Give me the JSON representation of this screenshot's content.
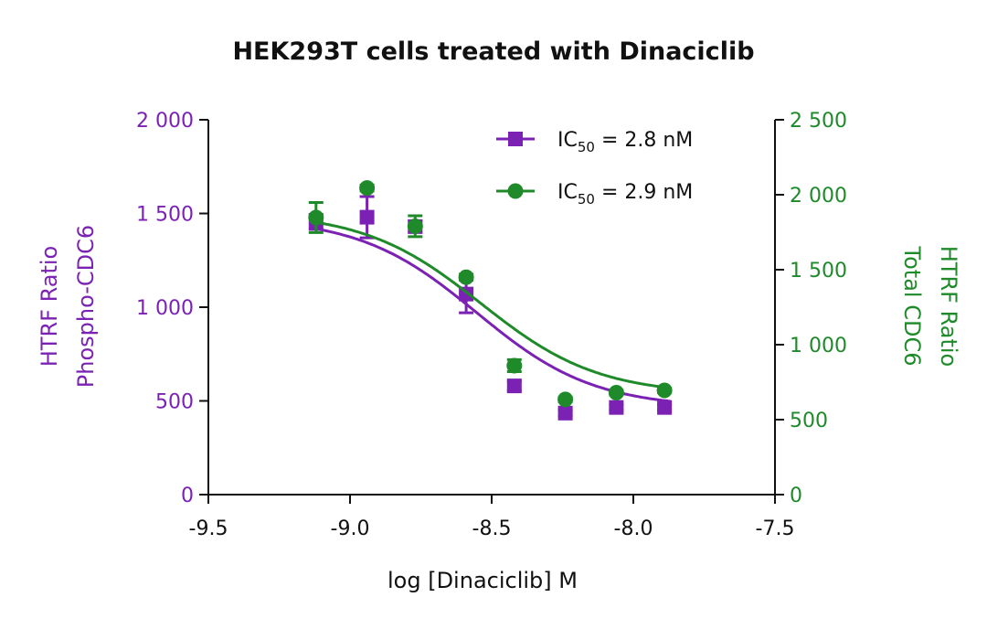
{
  "chart_data": {
    "type": "scatter",
    "title": "HEK293T cells treated with Dinaciclib",
    "xlabel": "log [Dinaciclib] M",
    "ylabel_left": [
      "HTRF Ratio",
      "Phospho-CDC6"
    ],
    "ylabel_right": [
      "HTRF Ratio",
      "Total CDC6"
    ],
    "xlim": [
      -9.5,
      -7.5
    ],
    "xticks": [
      -9.5,
      -9.0,
      -8.5,
      -8.0,
      -7.5
    ],
    "xtick_labels": [
      "-9.5",
      "-9.0",
      "-8.5",
      "-8.0",
      "-7.5"
    ],
    "ylim_left": [
      0,
      2000
    ],
    "yticks_left": [
      0,
      500,
      1000,
      1500,
      2000
    ],
    "ytick_labels_left": [
      "0",
      "500",
      "1 000",
      "1 500",
      "2 000"
    ],
    "ylim_right": [
      0,
      2500
    ],
    "yticks_right": [
      0,
      500,
      1000,
      1500,
      2000,
      2500
    ],
    "ytick_labels_right": [
      "0",
      "500",
      "1 000",
      "1 500",
      "2 000",
      "2 500"
    ],
    "grid": false,
    "legend_position": "top-right",
    "x": [
      -9.12,
      -8.94,
      -8.77,
      -8.59,
      -8.42,
      -8.24,
      -8.06,
      -7.89
    ],
    "series": [
      {
        "name": "IC50 = 2.8 nM",
        "legend_main": "IC",
        "legend_sub": "50",
        "legend_rest": " = 2.8 nM",
        "axis": "left",
        "color": "#7B22B4",
        "marker": "square",
        "values": [
          1455,
          1480,
          1430,
          1070,
          580,
          435,
          465,
          465
        ],
        "errors": [
          40,
          110,
          30,
          100,
          25,
          15,
          15,
          15
        ],
        "fit": {
          "top": 1480,
          "bottom": 462,
          "logIC50": -8.553,
          "hill": 2.1
        }
      },
      {
        "name": "IC50 = 2.9 nM",
        "legend_main": "IC",
        "legend_sub": "50",
        "legend_rest": " = 2.9 nM",
        "axis": "right",
        "color": "#1F8A2A",
        "marker": "circle",
        "values": [
          1848,
          2045,
          1790,
          1450,
          860,
          635,
          680,
          695
        ],
        "errors": [
          100,
          20,
          70,
          20,
          40,
          15,
          15,
          15
        ],
        "fit": {
          "top": 1885,
          "bottom": 665,
          "logIC50": -8.538,
          "hill": 2.1
        }
      }
    ]
  }
}
